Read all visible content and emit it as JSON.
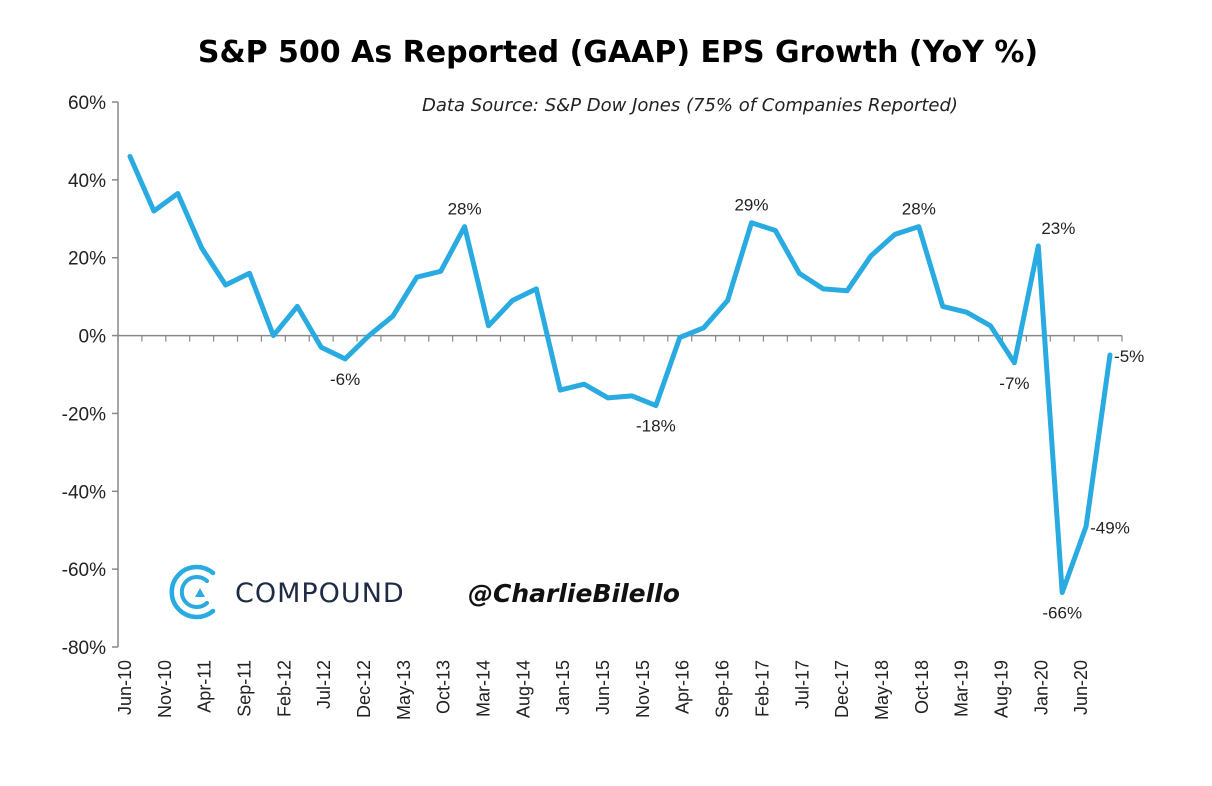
{
  "colors": {
    "line": "#29abe2",
    "axis": "#888888",
    "brand_text": "#1f2a44",
    "logo": "#29abe2"
  },
  "branding": {
    "logo_icon": "compound-logo-icon",
    "name": "COMPOUND",
    "handle": "@CharlieBilello"
  },
  "chart_data": {
    "type": "line",
    "title": "S&P 500 As Reported (GAAP) EPS Growth (YoY %)",
    "subtitle": "Data Source: S&P Dow Jones (75% of Companies Reported)",
    "xlabel": "",
    "ylabel": "",
    "ylim": [
      -80,
      60
    ],
    "yticks": [
      60,
      40,
      20,
      0,
      -20,
      -40,
      -60,
      -80
    ],
    "ytick_labels": [
      "60%",
      "40%",
      "20%",
      "0%",
      "-20%",
      "-40%",
      "-60%",
      "-80%"
    ],
    "grid": false,
    "x": [
      "Jun-10",
      "Sep-10",
      "Dec-10",
      "Mar-11",
      "Jun-11",
      "Sep-11",
      "Dec-11",
      "Mar-12",
      "Jun-12",
      "Sep-12",
      "Dec-12",
      "Mar-13",
      "Jun-13",
      "Sep-13",
      "Dec-13",
      "Mar-14",
      "Jun-14",
      "Sep-14",
      "Dec-14",
      "Mar-15",
      "Jun-15",
      "Sep-15",
      "Dec-15",
      "Mar-16",
      "Jun-16",
      "Sep-16",
      "Dec-16",
      "Mar-17",
      "Jun-17",
      "Sep-17",
      "Dec-17",
      "Mar-18",
      "Jun-18",
      "Sep-18",
      "Dec-18",
      "Mar-19",
      "Jun-19",
      "Sep-19",
      "Dec-19",
      "Mar-20",
      "Jun-20",
      "Sep-20"
    ],
    "xtick_labels": [
      "Jun-10",
      "Nov-10",
      "Apr-11",
      "Sep-11",
      "Feb-12",
      "Jul-12",
      "Dec-12",
      "May-13",
      "Oct-13",
      "Mar-14",
      "Aug-14",
      "Jan-15",
      "Jun-15",
      "Nov-15",
      "Apr-16",
      "Sep-16",
      "Feb-17",
      "Jul-17",
      "Dec-17",
      "May-18",
      "Oct-18",
      "Mar-19",
      "Aug-19",
      "Jan-20",
      "Jun-20"
    ],
    "series": [
      {
        "values": [
          46,
          32,
          36.5,
          22.5,
          13,
          16,
          0,
          7.5,
          -3,
          -6,
          0,
          5,
          15,
          16.5,
          28,
          2.5,
          9,
          12,
          -14,
          -12.5,
          -16,
          -15.5,
          -18,
          -0.5,
          2,
          9,
          29,
          27,
          16,
          12,
          11.5,
          20.5,
          26,
          28,
          7.5,
          6,
          2.5,
          -7,
          23,
          -66,
          -49,
          -5
        ]
      }
    ],
    "annotations": [
      {
        "index": 9,
        "text": "-6%",
        "position": "below"
      },
      {
        "index": 14,
        "text": "28%",
        "position": "above"
      },
      {
        "index": 22,
        "text": "-18%",
        "position": "below"
      },
      {
        "index": 26,
        "text": "29%",
        "position": "above"
      },
      {
        "index": 33,
        "text": "28%",
        "position": "above"
      },
      {
        "index": 37,
        "text": "-7%",
        "position": "below"
      },
      {
        "index": 38,
        "text": "23%",
        "position": "above-right"
      },
      {
        "index": 39,
        "text": "-66%",
        "position": "below"
      },
      {
        "index": 40,
        "text": "-49%",
        "position": "right"
      },
      {
        "index": 41,
        "text": "-5%",
        "position": "right"
      }
    ]
  }
}
